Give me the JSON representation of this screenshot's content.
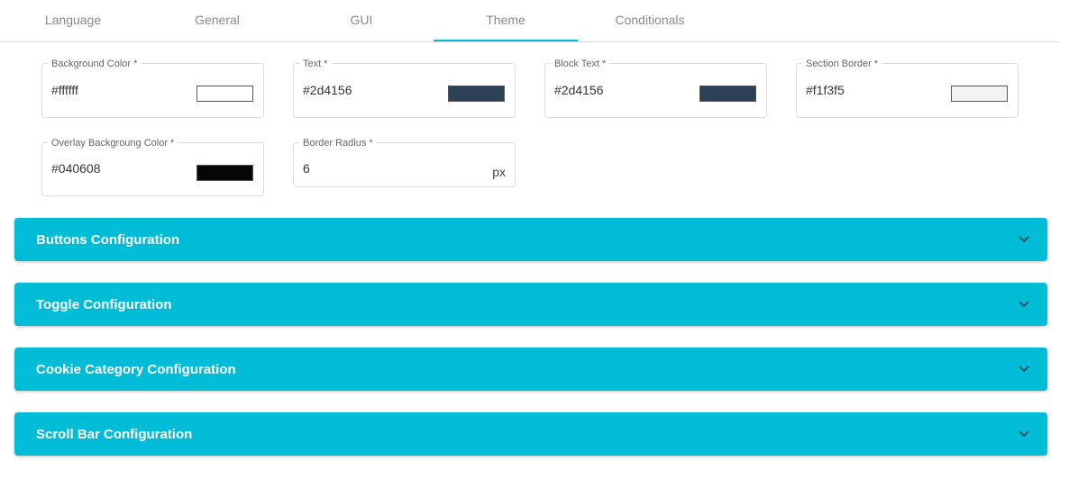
{
  "tabs": [
    "Language",
    "General",
    "GUI",
    "Theme",
    "Conditionals"
  ],
  "active_tab": "Theme",
  "fields": [
    {
      "label": "Background Color *",
      "value": "#ffffff"
    },
    {
      "label": "Text *",
      "value": "#2d4156"
    },
    {
      "label": "Block Text *",
      "value": "#2d4156"
    },
    {
      "label": "Section Border *",
      "value": "#f1f3f5"
    },
    {
      "label": "Overlay Backgroung Color *",
      "value": "#040608"
    },
    {
      "label": "Border Radius *",
      "value": "6",
      "unit": "px"
    }
  ],
  "sections": [
    "Buttons Configuration",
    "Toggle Configuration",
    "Cookie Category Configuration",
    "Scroll Bar Configuration"
  ]
}
